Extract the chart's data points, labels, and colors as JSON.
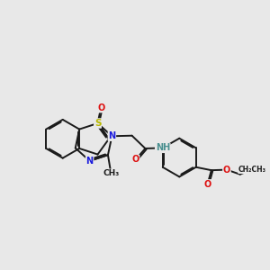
{
  "bg": "#e8e8e8",
  "bc": "#1a1a1a",
  "bw": 1.4,
  "dbo": 0.055,
  "sc": "#b8b800",
  "nc": "#1a1add",
  "oc": "#dd1010",
  "hc": "#4a9090",
  "cc": "#1a1a1a",
  "fs": 7.0,
  "figsize": [
    3.0,
    3.0
  ],
  "dpi": 100,
  "xlim": [
    0.0,
    10.0
  ],
  "ylim": [
    2.5,
    8.5
  ]
}
